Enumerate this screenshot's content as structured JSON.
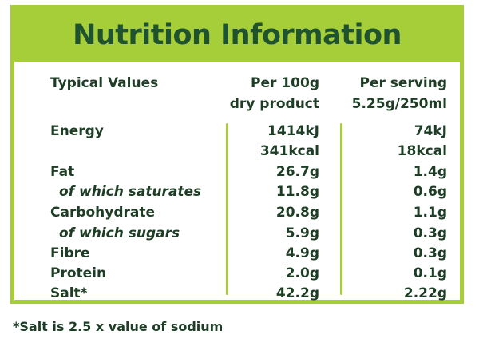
{
  "title": "Nutrition Information",
  "headers": {
    "label": "Typical Values",
    "per100_line1": "Per 100g",
    "per100_line2": "dry product",
    "serving_line1": "Per serving",
    "serving_line2": "5.25g/250ml"
  },
  "rows": [
    {
      "label": "Energy",
      "per100": "1414kJ",
      "serving": "74kJ"
    },
    {
      "label": "",
      "per100": "341kcal",
      "serving": "18kcal"
    },
    {
      "label": "Fat",
      "per100": "26.7g",
      "serving": "1.4g"
    },
    {
      "label": "of which saturates",
      "per100": "11.8g",
      "serving": "0.6g"
    },
    {
      "label": "Carbohydrate",
      "per100": "20.8g",
      "serving": "1.1g"
    },
    {
      "label": "of which sugars",
      "per100": "5.9g",
      "serving": "0.3g"
    },
    {
      "label": "Fibre",
      "per100": "4.9g",
      "serving": "0.3g"
    },
    {
      "label": "Protein",
      "per100": "2.0g",
      "serving": "0.1g"
    },
    {
      "label": "Salt*",
      "per100": "42.2g",
      "serving": "2.22g"
    }
  ],
  "footnote": "*Salt is 2.5 x value of sodium",
  "colors": {
    "accent_green": "#a6ce39",
    "title_text": "#1f5330",
    "body_text": "#1d3d25"
  }
}
